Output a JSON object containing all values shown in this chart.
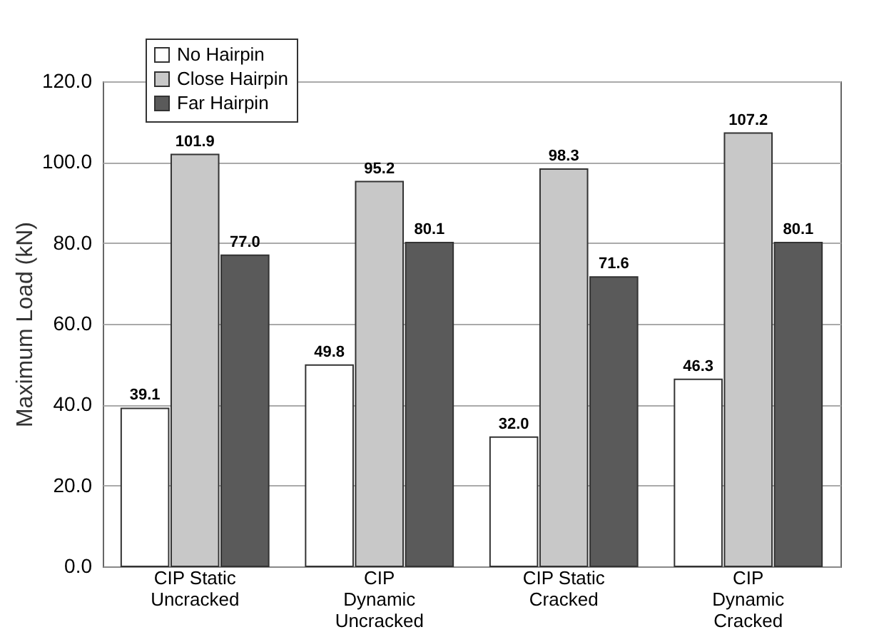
{
  "chart_data": {
    "type": "bar",
    "ylabel": "Maximum Load (kN)",
    "categories": [
      "CIP Static\nUncracked",
      "CIP\nDynamic\nUncracked",
      "CIP Static\nCracked",
      "CIP\nDynamic\nCracked"
    ],
    "series": [
      {
        "name": "No Hairpin",
        "color": "#ffffff",
        "values": [
          39.1,
          49.8,
          32.0,
          46.3
        ],
        "value_labels": [
          "39.1",
          "49.8",
          "32.0",
          "46.3"
        ]
      },
      {
        "name": "Close Hairpin",
        "color": "#c8c8c8",
        "values": [
          101.9,
          95.2,
          98.3,
          107.2
        ],
        "value_labels": [
          "101.9",
          "95.2",
          "98.3",
          "107.2"
        ]
      },
      {
        "name": "Far Hairpin",
        "color": "#5a5a5a",
        "values": [
          77.0,
          80.1,
          71.6,
          80.1
        ],
        "value_labels": [
          "77.0",
          "80.1",
          "71.6",
          "80.1"
        ]
      }
    ],
    "ylim": [
      0,
      120
    ],
    "yticks": [
      {
        "value": 0,
        "label": "0.0"
      },
      {
        "value": 20,
        "label": "20.0"
      },
      {
        "value": 40,
        "label": "40.0"
      },
      {
        "value": 60,
        "label": "60.0"
      },
      {
        "value": 80,
        "label": "80.0"
      },
      {
        "value": 100,
        "label": "100.0"
      },
      {
        "value": 120,
        "label": "120.0"
      }
    ],
    "grid": "y",
    "legend": "top left"
  }
}
